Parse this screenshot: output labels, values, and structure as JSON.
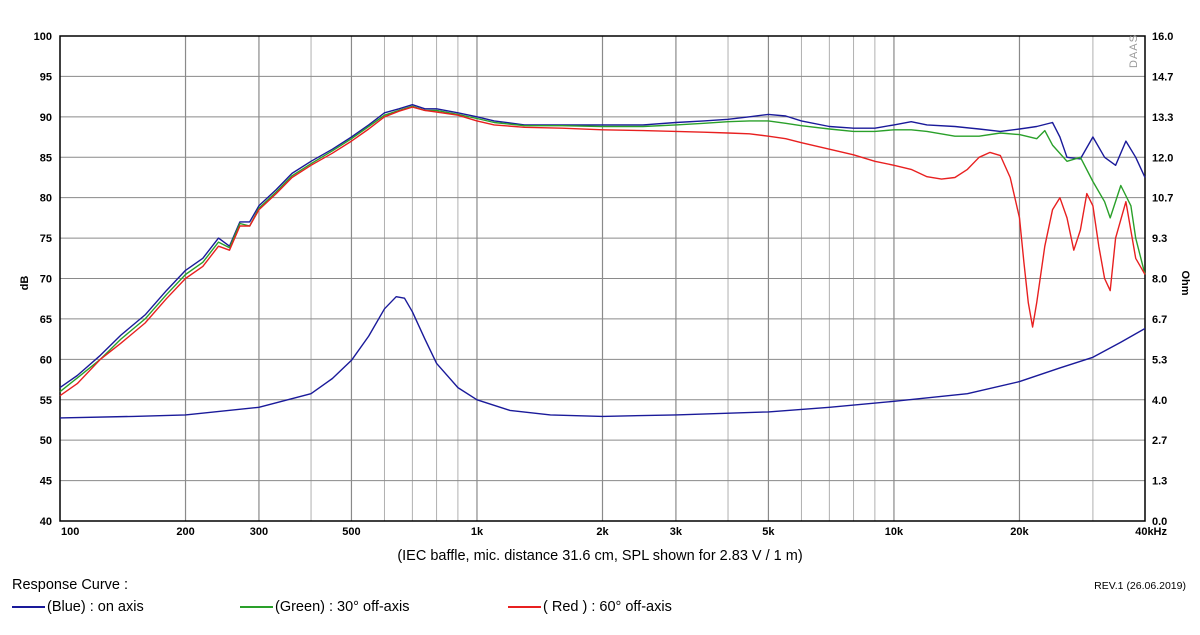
{
  "chart_data": {
    "type": "line",
    "xscale": "log",
    "xlim": [
      100,
      40000
    ],
    "ylim": [
      40,
      100
    ],
    "y2lim": [
      0,
      16
    ],
    "grid": true,
    "ylabel": "dB",
    "y2label": "Ohm",
    "xticks": [
      {
        "v": 100,
        "label": "100"
      },
      {
        "v": 200,
        "label": "200"
      },
      {
        "v": 300,
        "label": "300"
      },
      {
        "v": 500,
        "label": "500"
      },
      {
        "v": 1000,
        "label": "1k"
      },
      {
        "v": 2000,
        "label": "2k"
      },
      {
        "v": 3000,
        "label": "3k"
      },
      {
        "v": 5000,
        "label": "5k"
      },
      {
        "v": 10000,
        "label": "10k"
      },
      {
        "v": 20000,
        "label": "20k"
      },
      {
        "v": 40000,
        "label": "40kHz"
      }
    ],
    "yticks": [
      "100",
      "95",
      "90",
      "85",
      "80",
      "75",
      "70",
      "65",
      "60",
      "55",
      "50",
      "45",
      "40"
    ],
    "y2ticks": [
      "16.0",
      "14.7",
      "13.3",
      "12.0",
      "10.7",
      "9.3",
      "8.0",
      "6.7",
      "5.3",
      "4.0",
      "2.7",
      "1.3",
      "0.0"
    ],
    "watermark": "DAAS",
    "caption": "(IEC baffle, mic. distance 31.6 cm, SPL shown for 2.83 V / 1 m)",
    "legend_title": "Response Curve :",
    "revision": "REV.1 (26.06.2019)",
    "series": [
      {
        "name": "(Blue)  : on axis",
        "color": "#1a1a9a",
        "axis": "left",
        "x": [
          100,
          110,
          125,
          140,
          160,
          180,
          200,
          220,
          240,
          255,
          270,
          285,
          300,
          330,
          360,
          400,
          450,
          500,
          550,
          600,
          650,
          700,
          750,
          800,
          900,
          1000,
          1100,
          1300,
          1600,
          2000,
          2500,
          3000,
          3500,
          4000,
          4500,
          5000,
          5500,
          6000,
          7000,
          8000,
          9000,
          10000,
          11000,
          12000,
          14000,
          16000,
          18000,
          20000,
          22000,
          24000,
          25000,
          26000,
          28000,
          30000,
          32000,
          34000,
          36000,
          38000,
          40000
        ],
        "y": [
          56.5,
          58,
          60.5,
          63,
          65.5,
          68.5,
          71,
          72.5,
          75,
          74,
          77,
          77,
          79,
          81,
          83,
          84.5,
          86,
          87.5,
          89,
          90.5,
          91,
          91.5,
          91,
          91,
          90.5,
          90,
          89.5,
          89,
          89,
          89,
          89,
          89.3,
          89.5,
          89.7,
          90,
          90.3,
          90.1,
          89.5,
          88.8,
          88.6,
          88.6,
          89,
          89.4,
          89,
          88.8,
          88.5,
          88.2,
          88.5,
          88.8,
          89.3,
          87.5,
          85,
          84.8,
          87.5,
          85,
          84,
          87,
          85,
          82.5
        ]
      },
      {
        "name": "(Green) : 30° off-axis",
        "color": "#2aa02a",
        "axis": "left",
        "x": [
          100,
          110,
          125,
          140,
          160,
          180,
          200,
          220,
          240,
          255,
          270,
          285,
          300,
          330,
          360,
          400,
          450,
          500,
          550,
          600,
          650,
          700,
          750,
          800,
          900,
          1000,
          1100,
          1300,
          1600,
          2000,
          2500,
          3000,
          3500,
          4000,
          4500,
          5000,
          5500,
          6000,
          7000,
          8000,
          9000,
          10000,
          11000,
          12000,
          14000,
          16000,
          18000,
          20000,
          22000,
          23000,
          24000,
          26000,
          28000,
          30000,
          32000,
          33000,
          35000,
          37000,
          38000,
          40000
        ],
        "y": [
          56,
          57.7,
          60,
          62.5,
          65,
          68,
          70.5,
          72,
          74.5,
          73.8,
          76.8,
          76.5,
          78.7,
          80.7,
          82.7,
          84.2,
          85.8,
          87.3,
          88.8,
          90.2,
          90.8,
          91.3,
          90.8,
          90.8,
          90.3,
          89.8,
          89.3,
          88.9,
          88.9,
          88.8,
          88.8,
          89,
          89.2,
          89.4,
          89.5,
          89.5,
          89.2,
          88.9,
          88.5,
          88.2,
          88.2,
          88.4,
          88.4,
          88.2,
          87.6,
          87.6,
          88,
          87.8,
          87.3,
          88.3,
          86.5,
          84.5,
          85,
          82,
          79.5,
          77.5,
          81.5,
          79,
          75,
          70.5
        ]
      },
      {
        "name": "( Red ) : 60° off-axis",
        "color": "#e82020",
        "axis": "left",
        "x": [
          100,
          110,
          125,
          140,
          160,
          180,
          200,
          220,
          240,
          255,
          270,
          285,
          300,
          330,
          360,
          400,
          450,
          500,
          550,
          600,
          650,
          700,
          750,
          800,
          900,
          1000,
          1100,
          1300,
          1600,
          2000,
          2500,
          3000,
          3500,
          4000,
          4500,
          5000,
          5500,
          6000,
          7000,
          8000,
          9000,
          10000,
          11000,
          12000,
          13000,
          14000,
          15000,
          16000,
          17000,
          18000,
          19000,
          20000,
          20500,
          21000,
          21500,
          22000,
          23000,
          24000,
          25000,
          26000,
          27000,
          28000,
          29000,
          30000,
          31000,
          32000,
          33000,
          34000,
          36000,
          38000,
          40000
        ],
        "y": [
          55.5,
          57,
          60,
          62,
          64.5,
          67.5,
          70,
          71.5,
          74,
          73.5,
          76.5,
          76.5,
          78.5,
          80.5,
          82.5,
          84,
          85.5,
          87,
          88.5,
          90,
          90.7,
          91.2,
          90.8,
          90.6,
          90.2,
          89.5,
          89,
          88.7,
          88.6,
          88.4,
          88.3,
          88.2,
          88.1,
          88,
          87.9,
          87.6,
          87.3,
          86.8,
          86,
          85.3,
          84.5,
          84,
          83.5,
          82.6,
          82.3,
          82.5,
          83.5,
          85,
          85.6,
          85.2,
          82.5,
          77.5,
          72,
          67,
          64,
          67,
          74,
          78.5,
          80,
          77.5,
          73.5,
          76,
          80.5,
          79,
          74,
          70,
          68.5,
          75,
          79.5,
          72.5,
          70.5
        ]
      },
      {
        "name": "Impedance",
        "color": "#1a1a9a",
        "axis": "right",
        "x": [
          100,
          150,
          200,
          300,
          400,
          450,
          500,
          550,
          600,
          640,
          670,
          700,
          750,
          800,
          900,
          1000,
          1200,
          1500,
          2000,
          3000,
          5000,
          7000,
          10000,
          15000,
          20000,
          25000,
          30000,
          35000,
          40000
        ],
        "y": [
          3.4,
          3.45,
          3.5,
          3.75,
          4.2,
          4.7,
          5.3,
          6.1,
          7.0,
          7.4,
          7.35,
          6.9,
          6.0,
          5.2,
          4.4,
          4.0,
          3.65,
          3.5,
          3.45,
          3.5,
          3.6,
          3.75,
          3.95,
          4.2,
          4.6,
          5.05,
          5.4,
          5.9,
          6.35
        ]
      }
    ]
  }
}
